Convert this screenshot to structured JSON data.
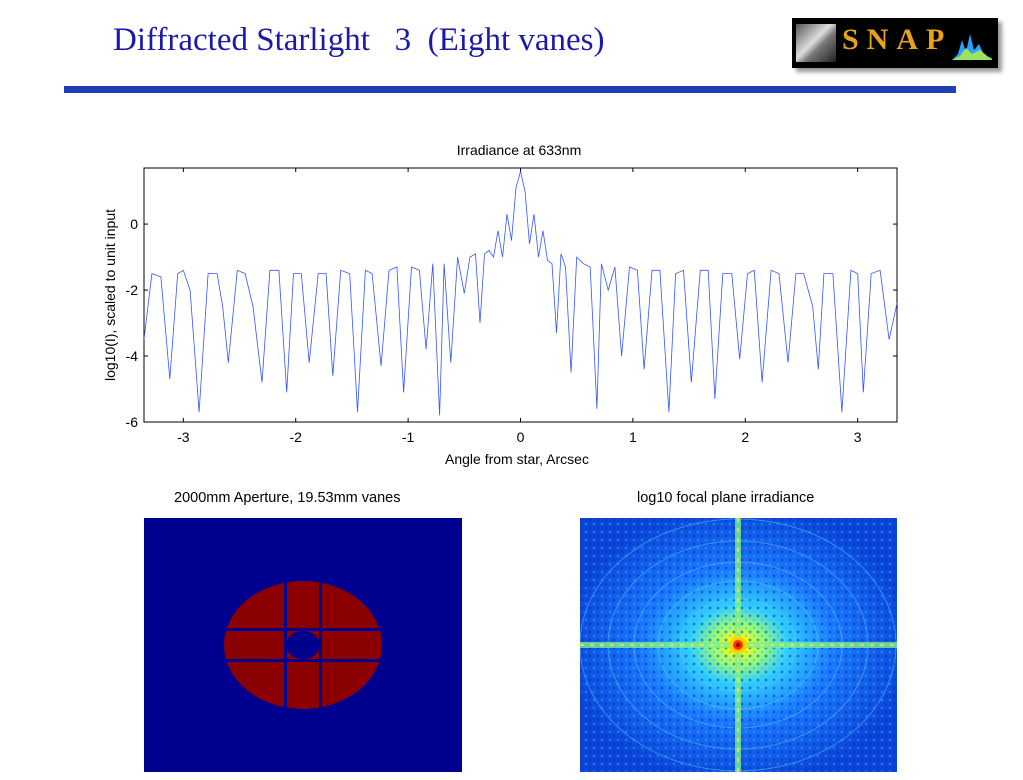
{
  "slide": {
    "title": "Diffracted Starlight   3  (Eight vanes)"
  },
  "logo": {
    "text": "SNAP"
  },
  "chart_data": {
    "type": "line",
    "title": "Irradiance at 633nm",
    "xlabel": "Angle from star, Arcsec",
    "ylabel": "log10(I), scaled to unit input",
    "xlim": [
      -3.35,
      3.35
    ],
    "ylim": [
      -6,
      1.7
    ],
    "xticks": [
      -3,
      -2,
      -1,
      0,
      1,
      2,
      3
    ],
    "yticks": [
      0,
      -2,
      -4,
      -6
    ],
    "xtick_labels": [
      "-3",
      "-2",
      "-1",
      "0",
      "1",
      "2",
      "3"
    ],
    "ytick_labels": [
      "0",
      "-2",
      "-4",
      "-6"
    ],
    "grid": false,
    "series": [
      {
        "color": "#3355ff",
        "x": [
          -3.35,
          -3.28,
          -3.2,
          -3.12,
          -3.05,
          -3.0,
          -2.94,
          -2.86,
          -2.78,
          -2.7,
          -2.65,
          -2.6,
          -2.52,
          -2.45,
          -2.38,
          -2.3,
          -2.23,
          -2.15,
          -2.08,
          -2.02,
          -1.95,
          -1.88,
          -1.8,
          -1.73,
          -1.67,
          -1.6,
          -1.52,
          -1.45,
          -1.38,
          -1.32,
          -1.24,
          -1.17,
          -1.1,
          -1.04,
          -0.97,
          -0.9,
          -0.84,
          -0.78,
          -0.72,
          -0.68,
          -0.62,
          -0.56,
          -0.5,
          -0.45,
          -0.4,
          -0.36,
          -0.32,
          -0.28,
          -0.24,
          -0.2,
          -0.16,
          -0.12,
          -0.08,
          -0.04,
          0.0,
          0.04,
          0.08,
          0.12,
          0.16,
          0.2,
          0.24,
          0.28,
          0.32,
          0.36,
          0.4,
          0.45,
          0.5,
          0.56,
          0.62,
          0.68,
          0.72,
          0.78,
          0.84,
          0.9,
          0.97,
          1.04,
          1.1,
          1.17,
          1.24,
          1.32,
          1.38,
          1.45,
          1.52,
          1.6,
          1.67,
          1.73,
          1.8,
          1.88,
          1.95,
          2.02,
          2.08,
          2.15,
          2.23,
          2.3,
          2.38,
          2.45,
          2.52,
          2.6,
          2.65,
          2.7,
          2.78,
          2.86,
          2.94,
          3.0,
          3.05,
          3.12,
          3.2,
          3.28,
          3.35
        ],
        "y": [
          -3.5,
          -1.5,
          -1.6,
          -4.7,
          -1.5,
          -1.4,
          -2.0,
          -5.7,
          -1.5,
          -1.5,
          -2.5,
          -4.2,
          -1.4,
          -1.5,
          -2.5,
          -4.8,
          -1.4,
          -1.4,
          -5.1,
          -1.5,
          -1.5,
          -4.2,
          -1.5,
          -1.5,
          -4.6,
          -1.4,
          -1.5,
          -5.7,
          -1.4,
          -1.5,
          -4.3,
          -1.4,
          -1.3,
          -5.1,
          -1.3,
          -1.4,
          -3.8,
          -1.2,
          -5.8,
          -1.2,
          -4.2,
          -1.0,
          -2.1,
          -1.0,
          -0.9,
          -3.0,
          -0.9,
          -0.8,
          -1.0,
          -0.2,
          -1.0,
          0.3,
          -0.5,
          1.1,
          1.6,
          1.0,
          -0.6,
          0.3,
          -1.0,
          -0.2,
          -1.1,
          -1.2,
          -3.3,
          -0.9,
          -1.3,
          -4.5,
          -1.0,
          -1.2,
          -1.3,
          -5.6,
          -1.2,
          -2.0,
          -1.3,
          -4.0,
          -1.3,
          -1.4,
          -4.4,
          -1.4,
          -1.4,
          -5.7,
          -1.5,
          -1.4,
          -4.8,
          -1.4,
          -1.4,
          -5.3,
          -1.5,
          -1.5,
          -4.1,
          -1.5,
          -1.4,
          -4.8,
          -1.4,
          -1.5,
          -4.2,
          -1.5,
          -1.5,
          -2.5,
          -4.4,
          -1.5,
          -1.5,
          -5.7,
          -1.4,
          -1.5,
          -5.1,
          -1.5,
          -1.4,
          -3.5,
          -2.4
        ]
      }
    ]
  },
  "aperture": {
    "title": "2000mm Aperture, 19.53mm vanes"
  },
  "focal_plane": {
    "title": "log10 focal plane irradiance"
  }
}
